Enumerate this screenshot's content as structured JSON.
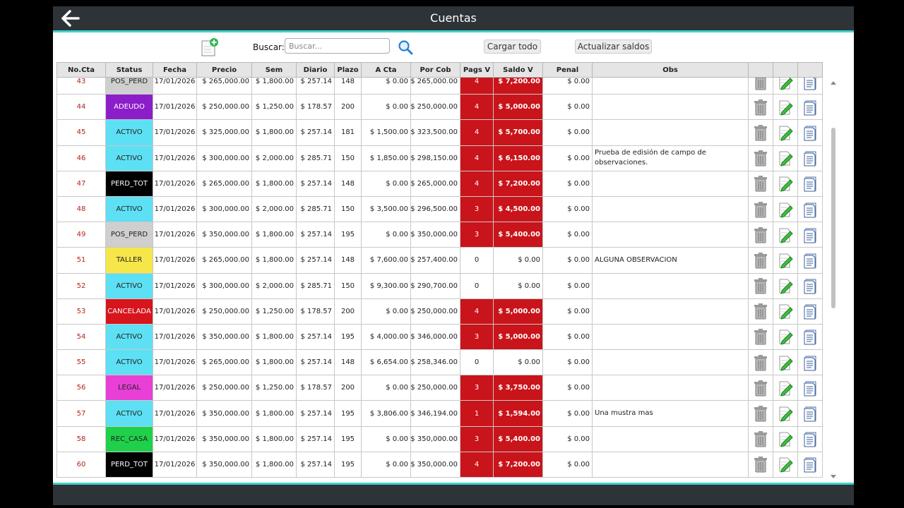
{
  "window": {
    "title": "Cuentas"
  },
  "toolbar": {
    "search_label": "Buscar:",
    "search_placeholder": "Buscar...",
    "search_value": "",
    "load_all_label": "Cargar todo",
    "update_balances_label": "Actualizar saldos"
  },
  "table": {
    "columns": [
      "No.Cta",
      "Status",
      "Fecha",
      "Precio",
      "Sem",
      "Diario",
      "Plazo",
      "A Cta",
      "Por Cob",
      "Pags V",
      "Saldo V",
      "Penal",
      "Obs",
      "",
      "",
      ""
    ],
    "rows": [
      {
        "cta": "43",
        "status": "POS_PERD",
        "status_color": "#cfcfcf",
        "status_text_color": "#222",
        "fecha": "17/01/2026",
        "precio": "$ 265,000.00",
        "sem": "$ 1,800.00",
        "diario": "$ 257.14",
        "plazo": "148",
        "acta": "$ 0.00",
        "porcob": "$ 265,000.00",
        "pagsv": "4",
        "saldov": "$ 7,200.00",
        "vencido": true,
        "penal": "$ 0.00",
        "obs": ""
      },
      {
        "cta": "44",
        "status": "ADEUDO",
        "status_color": "#8b1ec9",
        "status_text_color": "#fff",
        "fecha": "17/01/2026",
        "precio": "$ 250,000.00",
        "sem": "$ 1,250.00",
        "diario": "$ 178.57",
        "plazo": "200",
        "acta": "$ 0.00",
        "porcob": "$ 250,000.00",
        "pagsv": "4",
        "saldov": "$ 5,000.00",
        "vencido": true,
        "penal": "$ 0.00",
        "obs": ""
      },
      {
        "cta": "45",
        "status": "ACTIVO",
        "status_color": "#5de0f4",
        "status_text_color": "#222",
        "fecha": "17/01/2026",
        "precio": "$ 325,000.00",
        "sem": "$ 1,800.00",
        "diario": "$ 257.14",
        "plazo": "181",
        "acta": "$ 1,500.00",
        "porcob": "$ 323,500.00",
        "pagsv": "4",
        "saldov": "$ 5,700.00",
        "vencido": true,
        "penal": "$ 0.00",
        "obs": ""
      },
      {
        "cta": "46",
        "status": "ACTIVO",
        "status_color": "#5de0f4",
        "status_text_color": "#222",
        "fecha": "17/01/2026",
        "precio": "$ 300,000.00",
        "sem": "$ 2,000.00",
        "diario": "$ 285.71",
        "plazo": "150",
        "acta": "$ 1,850.00",
        "porcob": "$ 298,150.00",
        "pagsv": "4",
        "saldov": "$ 6,150.00",
        "vencido": true,
        "penal": "$ 0.00",
        "obs": "Prueba de edisión de campo de observaciones."
      },
      {
        "cta": "47",
        "status": "PERD_TOT",
        "status_color": "#000000",
        "status_text_color": "#fff",
        "fecha": "17/01/2026",
        "precio": "$ 265,000.00",
        "sem": "$ 1,800.00",
        "diario": "$ 257.14",
        "plazo": "148",
        "acta": "$ 0.00",
        "porcob": "$ 265,000.00",
        "pagsv": "4",
        "saldov": "$ 7,200.00",
        "vencido": true,
        "penal": "$ 0.00",
        "obs": ""
      },
      {
        "cta": "48",
        "status": "ACTIVO",
        "status_color": "#5de0f4",
        "status_text_color": "#222",
        "fecha": "17/01/2026",
        "precio": "$ 300,000.00",
        "sem": "$ 2,000.00",
        "diario": "$ 285.71",
        "plazo": "150",
        "acta": "$ 3,500.00",
        "porcob": "$ 296,500.00",
        "pagsv": "3",
        "saldov": "$ 4,500.00",
        "vencido": true,
        "penal": "$ 0.00",
        "obs": ""
      },
      {
        "cta": "49",
        "status": "POS_PERD",
        "status_color": "#cfcfcf",
        "status_text_color": "#222",
        "fecha": "17/01/2026",
        "precio": "$ 350,000.00",
        "sem": "$ 1,800.00",
        "diario": "$ 257.14",
        "plazo": "195",
        "acta": "$ 0.00",
        "porcob": "$ 350,000.00",
        "pagsv": "3",
        "saldov": "$ 5,400.00",
        "vencido": true,
        "penal": "$ 0.00",
        "obs": ""
      },
      {
        "cta": "51",
        "status": "TALLER",
        "status_color": "#f7e64a",
        "status_text_color": "#222",
        "fecha": "17/01/2026",
        "precio": "$ 265,000.00",
        "sem": "$ 1,800.00",
        "diario": "$ 257.14",
        "plazo": "148",
        "acta": "$ 7,600.00",
        "porcob": "$ 257,400.00",
        "pagsv": "0",
        "saldov": "$ 0.00",
        "vencido": false,
        "penal": "$ 0.00",
        "obs": "ALGUNA OBSERVACION"
      },
      {
        "cta": "52",
        "status": "ACTIVO",
        "status_color": "#5de0f4",
        "status_text_color": "#222",
        "fecha": "17/01/2026",
        "precio": "$ 300,000.00",
        "sem": "$ 2,000.00",
        "diario": "$ 285.71",
        "plazo": "150",
        "acta": "$ 9,300.00",
        "porcob": "$ 290,700.00",
        "pagsv": "0",
        "saldov": "$ 0.00",
        "vencido": false,
        "penal": "$ 0.00",
        "obs": ""
      },
      {
        "cta": "53",
        "status": "CANCELADA",
        "status_color": "#d6151c",
        "status_text_color": "#fff",
        "fecha": "17/01/2026",
        "precio": "$ 250,000.00",
        "sem": "$ 1,250.00",
        "diario": "$ 178.57",
        "plazo": "200",
        "acta": "$ 0.00",
        "porcob": "$ 250,000.00",
        "pagsv": "4",
        "saldov": "$ 5,000.00",
        "vencido": true,
        "penal": "$ 0.00",
        "obs": ""
      },
      {
        "cta": "54",
        "status": "ACTIVO",
        "status_color": "#5de0f4",
        "status_text_color": "#222",
        "fecha": "17/01/2026",
        "precio": "$ 350,000.00",
        "sem": "$ 1,800.00",
        "diario": "$ 257.14",
        "plazo": "195",
        "acta": "$ 4,000.00",
        "porcob": "$ 346,000.00",
        "pagsv": "3",
        "saldov": "$ 5,000.00",
        "vencido": true,
        "penal": "$ 0.00",
        "obs": ""
      },
      {
        "cta": "55",
        "status": "ACTIVO",
        "status_color": "#5de0f4",
        "status_text_color": "#222",
        "fecha": "17/01/2026",
        "precio": "$ 265,000.00",
        "sem": "$ 1,800.00",
        "diario": "$ 257.14",
        "plazo": "148",
        "acta": "$ 6,654.00",
        "porcob": "$ 258,346.00",
        "pagsv": "0",
        "saldov": "$ 0.00",
        "vencido": false,
        "penal": "$ 0.00",
        "obs": ""
      },
      {
        "cta": "56",
        "status": "LEGAL",
        "status_color": "#e83fd6",
        "status_text_color": "#222",
        "fecha": "17/01/2026",
        "precio": "$ 250,000.00",
        "sem": "$ 1,250.00",
        "diario": "$ 178.57",
        "plazo": "200",
        "acta": "$ 0.00",
        "porcob": "$ 250,000.00",
        "pagsv": "3",
        "saldov": "$ 3,750.00",
        "vencido": true,
        "penal": "$ 0.00",
        "obs": ""
      },
      {
        "cta": "57",
        "status": "ACTIVO",
        "status_color": "#5de0f4",
        "status_text_color": "#222",
        "fecha": "17/01/2026",
        "precio": "$ 350,000.00",
        "sem": "$ 1,800.00",
        "diario": "$ 257.14",
        "plazo": "195",
        "acta": "$ 3,806.00",
        "porcob": "$ 346,194.00",
        "pagsv": "1",
        "saldov": "$ 1,594.00",
        "vencido": true,
        "penal": "$ 0.00",
        "obs": "Una mustra mas"
      },
      {
        "cta": "58",
        "status": "REC_CASA",
        "status_color": "#1fd14a",
        "status_text_color": "#222",
        "fecha": "17/01/2026",
        "precio": "$ 350,000.00",
        "sem": "$ 1,800.00",
        "diario": "$ 257.14",
        "plazo": "195",
        "acta": "$ 0.00",
        "porcob": "$ 350,000.00",
        "pagsv": "3",
        "saldov": "$ 5,400.00",
        "vencido": true,
        "penal": "$ 0.00",
        "obs": ""
      },
      {
        "cta": "60",
        "status": "PERD_TOT",
        "status_color": "#000000",
        "status_text_color": "#fff",
        "fecha": "17/01/2026",
        "precio": "$ 350,000.00",
        "sem": "$ 1,800.00",
        "diario": "$ 257.14",
        "plazo": "195",
        "acta": "$ 0.00",
        "porcob": "$ 350,000.00",
        "pagsv": "4",
        "saldov": "$ 7,200.00",
        "vencido": true,
        "penal": "$ 0.00",
        "obs": ""
      }
    ],
    "row_icons": [
      "trash-icon",
      "edit-icon",
      "document-icon"
    ]
  },
  "colors": {
    "titlebar": "#2e3338",
    "accent": "#40d2c8",
    "overdue": "#c8141a",
    "account_number": "#b5231d"
  }
}
